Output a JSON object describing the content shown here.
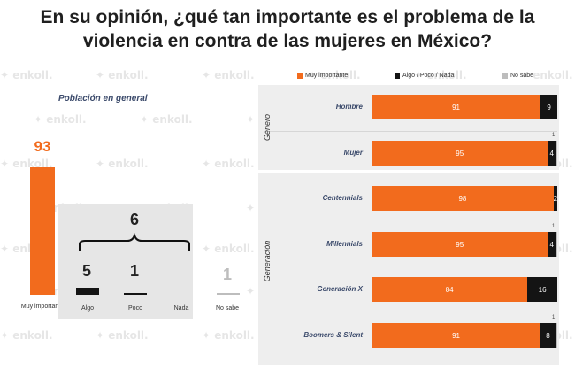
{
  "title_line1": "En su opinión, ¿qué tan importante es el problema de la",
  "title_line2": "violencia en contra de las mujeres en México?",
  "watermark": "enkoll.",
  "left_panel": {
    "title": "Población en general",
    "muy_importante": {
      "label": "Muy importante",
      "value": "93"
    },
    "group_total": "6",
    "algo": {
      "label": "Algo",
      "value": "5"
    },
    "poco": {
      "label": "Poco",
      "value": "1"
    },
    "nada": {
      "label": "Nada",
      "value": ""
    },
    "no_sabe": {
      "label": "No sabe",
      "value": "1"
    }
  },
  "legend": {
    "muy": "Muy importante",
    "algo": "Algo / Poco / Nada",
    "nosabe": "No sabe"
  },
  "groups": {
    "genero": "Género",
    "generacion": "Generación"
  },
  "colors": {
    "orange": "#F26B1D",
    "black": "#141414",
    "gray": "#BDBDBD"
  },
  "chart_data": [
    {
      "type": "bar",
      "title": "Población en general",
      "categories": [
        "Muy importante",
        "Algo",
        "Poco",
        "Nada",
        "No sabe"
      ],
      "values": [
        93,
        5,
        1,
        0,
        1
      ],
      "annotations": [
        "6"
      ]
    },
    {
      "type": "bar",
      "stacked": true,
      "orientation": "horizontal",
      "categories": [
        "Hombre",
        "Mujer",
        "Centennials",
        "Millennials",
        "Generación X",
        "Boomers & Silent"
      ],
      "groups": [
        {
          "name": "Género",
          "categories": [
            "Hombre",
            "Mujer"
          ]
        },
        {
          "name": "Generación",
          "categories": [
            "Centennials",
            "Millennials",
            "Generación X",
            "Boomers & Silent"
          ]
        }
      ],
      "series": [
        {
          "name": "Muy importante",
          "values": [
            91,
            95,
            98,
            95,
            84,
            91
          ]
        },
        {
          "name": "Algo / Poco / Nada",
          "values": [
            9,
            4,
            2,
            4,
            16,
            8
          ]
        },
        {
          "name": "No sabe",
          "values": [
            0,
            1,
            0,
            1,
            0,
            1
          ]
        }
      ],
      "legend": "top-right",
      "xlim": [
        0,
        100
      ]
    }
  ]
}
